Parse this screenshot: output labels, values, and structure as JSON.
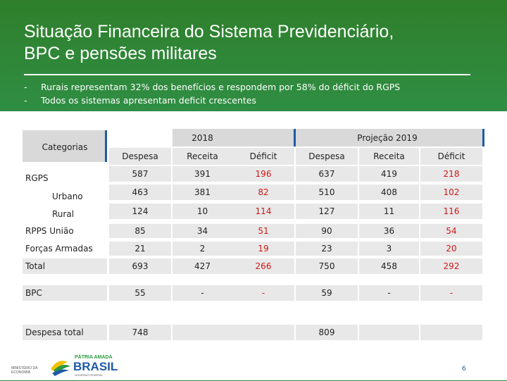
{
  "slide": {
    "title_line1": "Situação Financeira do Sistema Previdenciário,",
    "title_line2": "BPC e pensões militares",
    "bullets": [
      "Rurais representam 32% dos benefícios e respondem por 58% do déficit do RGPS",
      "Todos os sistemas apresentam deficit crescentes"
    ],
    "bullet_marker": "-",
    "page_number": "6"
  },
  "table": {
    "categories_label": "Categorias",
    "group_2018": "2018",
    "group_2019": "Projeção 2019",
    "columns": [
      "Despesa",
      "Receita",
      "Déficit",
      "Despesa",
      "Receita",
      "Déficit"
    ],
    "rows": [
      {
        "label": "RGPS",
        "values": [
          "587",
          "391",
          "196",
          "637",
          "419",
          "218"
        ]
      },
      {
        "label": "Urbano",
        "values": [
          "463",
          "381",
          "82",
          "510",
          "408",
          "102"
        ]
      },
      {
        "label": "Rural",
        "values": [
          "124",
          "10",
          "114",
          "127",
          "11",
          "116"
        ]
      },
      {
        "label": "RPPS União",
        "values": [
          "85",
          "34",
          "51",
          "90",
          "36",
          "54"
        ]
      },
      {
        "label": "Forças Armadas",
        "values": [
          "21",
          "2",
          "19",
          "23",
          "3",
          "20"
        ]
      },
      {
        "label": "Total",
        "values": [
          "693",
          "427",
          "266",
          "750",
          "458",
          "292"
        ]
      },
      {
        "label": "BPC",
        "values": [
          "55",
          "-",
          "-",
          "59",
          "-",
          "-"
        ]
      },
      {
        "label": "Despesa total",
        "values": [
          "748",
          "",
          "",
          "809",
          "",
          ""
        ]
      }
    ]
  },
  "footer": {
    "ministry": "MINISTÉRIO DA ECONOMIA",
    "slogan": "PÁTRIA AMADA",
    "brand": "BRASIL",
    "gov": "GOVERNO FEDERAL"
  }
}
